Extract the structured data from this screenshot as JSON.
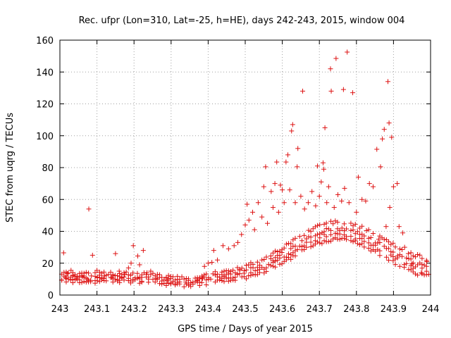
{
  "chart_data": {
    "type": "scatter",
    "title": "Rec. ufpr (Lon=310, Lat=-25, h=HE), days 242-243, 2015, window 004",
    "xlabel": "GPS time / Days of year 2015",
    "ylabel": "STEC from uqrg / TECUs",
    "xlim": [
      243.0,
      244.0
    ],
    "ylim": [
      0,
      160
    ],
    "xticks": [
      "243",
      "243.1",
      "243.2",
      "243.3",
      "243.4",
      "243.5",
      "243.6",
      "243.7",
      "243.8",
      "243.9",
      "244"
    ],
    "yticks": [
      "0",
      "20",
      "40",
      "60",
      "80",
      "100",
      "120",
      "140",
      "160"
    ],
    "grid": true,
    "legend": "none",
    "marker": "+",
    "color": "#dd1111",
    "series": [
      {
        "points": [
          [
            243.01,
            26.5
          ],
          [
            243.015,
            11.0
          ],
          [
            243.02,
            13.5
          ],
          [
            243.03,
            15.5
          ],
          [
            243.035,
            12.0
          ],
          [
            243.045,
            10.5
          ],
          [
            243.06,
            11.5
          ],
          [
            243.075,
            10.0
          ],
          [
            243.078,
            54.0
          ],
          [
            243.085,
            12.0
          ],
          [
            243.088,
            25.0
          ],
          [
            243.1,
            15.5
          ],
          [
            243.12,
            12.0
          ],
          [
            243.14,
            11.0
          ],
          [
            243.15,
            26.0
          ],
          [
            243.16,
            15.0
          ],
          [
            243.175,
            13.0
          ],
          [
            243.185,
            17.0
          ],
          [
            243.192,
            20.0
          ],
          [
            243.198,
            31.0
          ],
          [
            243.21,
            24.5
          ],
          [
            243.215,
            19.0
          ],
          [
            243.225,
            28.0
          ],
          [
            243.235,
            14.0
          ],
          [
            243.245,
            15.0
          ],
          [
            243.26,
            10.5
          ],
          [
            243.29,
            9.0
          ],
          [
            243.34,
            8.0
          ],
          [
            243.37,
            9.0
          ],
          [
            243.385,
            10.5
          ],
          [
            243.39,
            18.0
          ],
          [
            243.4,
            20.0
          ],
          [
            243.41,
            20.5
          ],
          [
            243.415,
            28.0
          ],
          [
            243.425,
            22.0
          ],
          [
            243.44,
            31.0
          ],
          [
            243.455,
            29.0
          ],
          [
            243.47,
            31.0
          ],
          [
            243.48,
            33.0
          ],
          [
            243.49,
            38.0
          ],
          [
            243.5,
            44.0
          ],
          [
            243.505,
            57.0
          ],
          [
            243.51,
            47.0
          ],
          [
            243.52,
            52.0
          ],
          [
            243.525,
            41.0
          ],
          [
            243.535,
            58.0
          ],
          [
            243.545,
            49.0
          ],
          [
            243.55,
            68.0
          ],
          [
            243.555,
            80.5
          ],
          [
            243.56,
            45.0
          ],
          [
            243.57,
            65.0
          ],
          [
            243.575,
            55.0
          ],
          [
            243.58,
            70.0
          ],
          [
            243.585,
            83.5
          ],
          [
            243.59,
            52.0
          ],
          [
            243.595,
            69.0
          ],
          [
            243.6,
            66.0
          ],
          [
            243.605,
            58.0
          ],
          [
            243.61,
            83.5
          ],
          [
            243.615,
            88.0
          ],
          [
            243.62,
            66.0
          ],
          [
            243.625,
            103.0
          ],
          [
            243.628,
            107.0
          ],
          [
            243.635,
            58.0
          ],
          [
            243.64,
            80.5
          ],
          [
            243.642,
            92.0
          ],
          [
            243.65,
            62.0
          ],
          [
            243.655,
            128.0
          ],
          [
            243.66,
            54.0
          ],
          [
            243.67,
            58.0
          ],
          [
            243.68,
            65.0
          ],
          [
            243.69,
            56.0
          ],
          [
            243.695,
            81.0
          ],
          [
            243.7,
            62.0
          ],
          [
            243.705,
            71.0
          ],
          [
            243.71,
            83.0
          ],
          [
            243.712,
            79.0
          ],
          [
            243.715,
            105.0
          ],
          [
            243.72,
            58.0
          ],
          [
            243.725,
            68.0
          ],
          [
            243.73,
            142.0
          ],
          [
            243.732,
            128.0
          ],
          [
            243.74,
            55.0
          ],
          [
            243.745,
            148.5
          ],
          [
            243.75,
            63.0
          ],
          [
            243.76,
            59.0
          ],
          [
            243.765,
            129.0
          ],
          [
            243.768,
            67.0
          ],
          [
            243.775,
            152.5
          ],
          [
            243.78,
            58.0
          ],
          [
            243.79,
            127.0
          ],
          [
            243.8,
            52.0
          ],
          [
            243.805,
            74.0
          ],
          [
            243.815,
            60.0
          ],
          [
            243.825,
            59.0
          ],
          [
            243.835,
            70.0
          ],
          [
            243.845,
            68.0
          ],
          [
            243.855,
            91.5
          ],
          [
            243.86,
            35.0
          ],
          [
            243.865,
            80.5
          ],
          [
            243.87,
            98.0
          ],
          [
            243.875,
            104.0
          ],
          [
            243.88,
            43.0
          ],
          [
            243.885,
            134.0
          ],
          [
            243.888,
            108.0
          ],
          [
            243.89,
            55.0
          ],
          [
            243.895,
            99.0
          ],
          [
            243.9,
            68.0
          ],
          [
            243.91,
            70.0
          ],
          [
            243.915,
            43.0
          ],
          [
            243.925,
            39.0
          ],
          [
            243.93,
            30.0
          ],
          [
            243.94,
            26.0
          ],
          [
            243.95,
            19.5
          ],
          [
            243.965,
            19.0
          ],
          [
            243.975,
            14.0
          ],
          [
            243.99,
            21.0
          ],
          [
            243.995,
            13.0
          ]
        ]
      }
    ]
  }
}
